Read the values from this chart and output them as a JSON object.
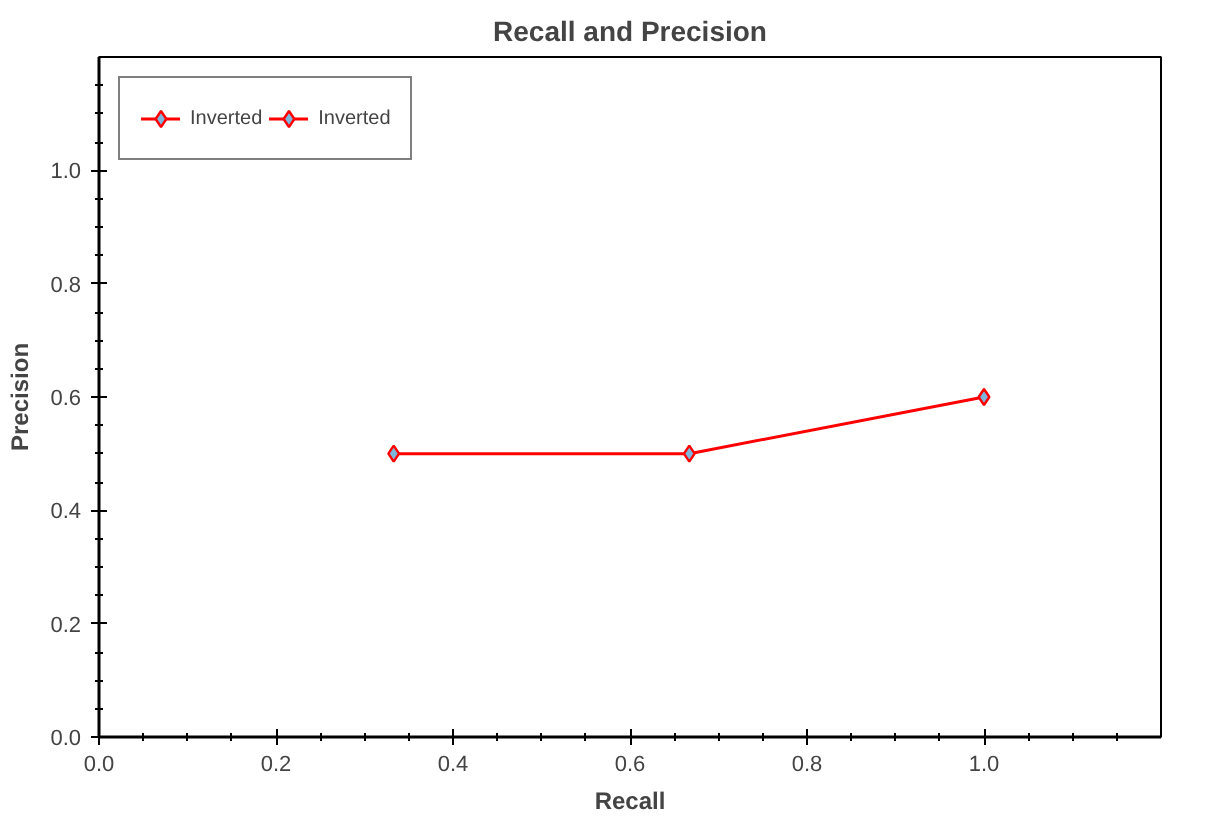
{
  "chart_data": {
    "type": "line",
    "title": "Recall and Precision",
    "xlabel": "Recall",
    "ylabel": "Precision",
    "x": [
      0.333,
      0.667,
      1.0
    ],
    "series": [
      {
        "name": "Inverted",
        "color": "#ff0000",
        "values": [
          0.5,
          0.5,
          0.6
        ]
      },
      {
        "name": "Inverted",
        "color": "#ff0000",
        "values": [
          null,
          null,
          null
        ]
      }
    ],
    "xlim": [
      0,
      1.2
    ],
    "ylim": [
      0,
      1.2
    ],
    "xticks": [
      {
        "value": 0,
        "label": "0.0"
      },
      0.2,
      0.4,
      0.6,
      0.8,
      {
        "value": 1,
        "label": "1.0"
      }
    ],
    "yticks": [
      {
        "value": 0,
        "label": "0.0"
      },
      0.2,
      0.4,
      0.6,
      0.8,
      {
        "value": 1,
        "label": "1.0"
      }
    ],
    "grid": false,
    "legend": "top left",
    "marker": "diamond",
    "line_style": "solid"
  }
}
